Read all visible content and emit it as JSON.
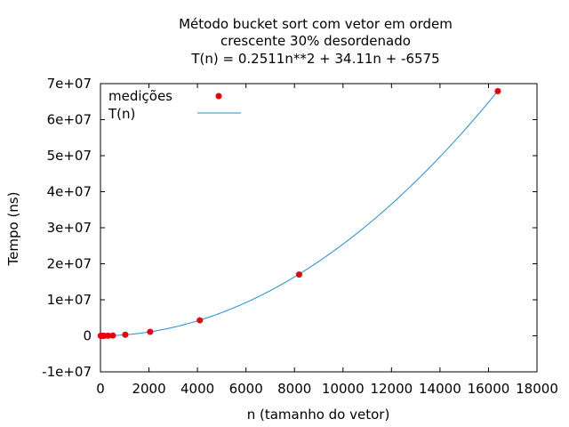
{
  "chart_data": {
    "type": "scatter",
    "title_lines": [
      "Método bucket sort com vetor em ordem",
      "crescente 30% desordenado",
      "T(n) = 0.2511n**2 + 34.11n + -6575"
    ],
    "xlabel": "n (tamanho do vetor)",
    "ylabel": "Tempo (ns)",
    "xlim": [
      0,
      18000
    ],
    "ylim": [
      -10000000,
      70000000
    ],
    "x_ticks": [
      0,
      2000,
      4000,
      6000,
      8000,
      10000,
      12000,
      14000,
      16000,
      18000
    ],
    "x_tick_labels": [
      "0",
      "2000",
      "4000",
      "6000",
      "8000",
      "10000",
      "12000",
      "14000",
      "16000",
      "18000"
    ],
    "y_ticks": [
      -10000000,
      0,
      10000000,
      20000000,
      30000000,
      40000000,
      50000000,
      60000000,
      70000000
    ],
    "y_tick_labels": [
      "-1e+07",
      "0",
      "1e+07",
      "2e+07",
      "3e+07",
      "4e+07",
      "5e+07",
      "6e+07",
      "7e+07"
    ],
    "grid": false,
    "legend_position": "top-left",
    "series": [
      {
        "name": "medições",
        "kind": "points",
        "color": "#e8000b",
        "x": [
          10,
          20,
          40,
          80,
          160,
          320,
          512,
          1024,
          2048,
          4096,
          8192,
          16384
        ],
        "y": [
          0,
          0,
          0,
          0,
          0,
          30000,
          80000,
          300000,
          1100000,
          4300000,
          17000000,
          67900000
        ]
      },
      {
        "name": "T(n)",
        "kind": "line",
        "color": "#1f8fd0",
        "coefficients": [
          0.2511,
          34.11,
          -6575
        ],
        "domain": [
          0,
          16384
        ]
      }
    ]
  }
}
